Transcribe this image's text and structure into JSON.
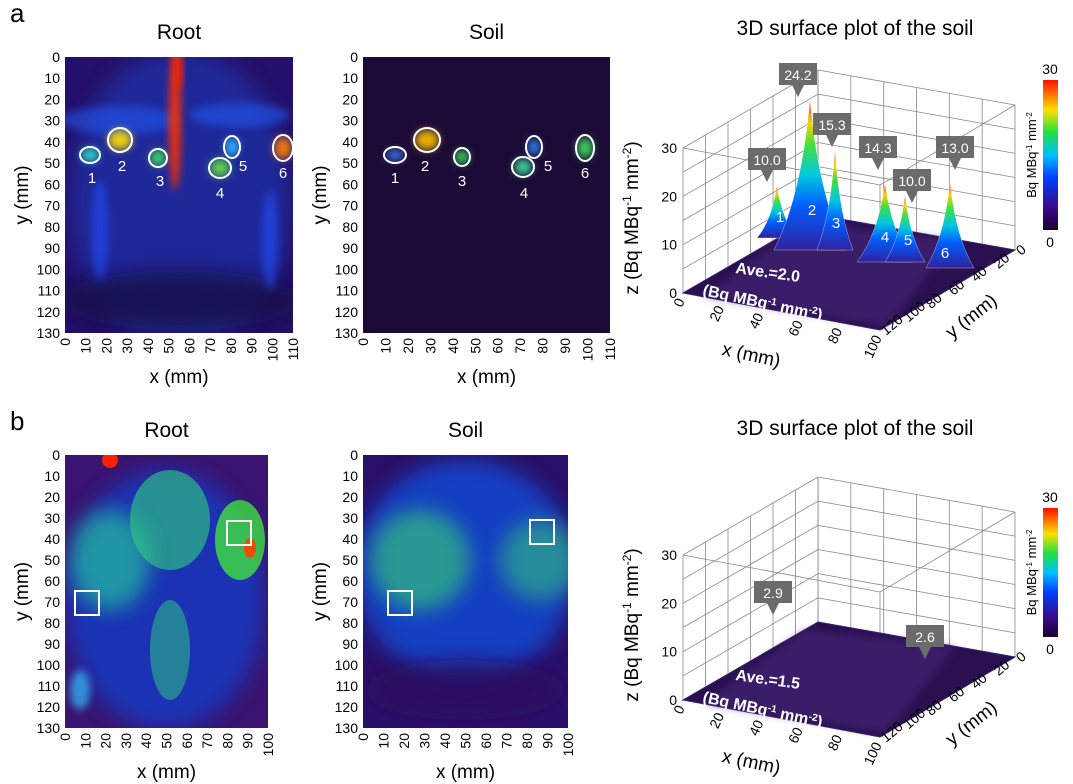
{
  "panels": [
    {
      "label": "a",
      "root": {
        "title": "Root",
        "x_label": "x (mm)",
        "y_label": "y (mm)",
        "x_ticks": [
          0,
          10,
          20,
          30,
          40,
          50,
          60,
          70,
          80,
          90,
          100,
          110
        ],
        "y_ticks": [
          0,
          10,
          20,
          30,
          40,
          50,
          60,
          70,
          80,
          90,
          100,
          110,
          120,
          130
        ],
        "markers": [
          "1",
          "2",
          "3",
          "4",
          "5",
          "6"
        ]
      },
      "soil": {
        "title": "Soil",
        "x_label": "x (mm)",
        "y_label": "y (mm)",
        "x_ticks": [
          0,
          10,
          20,
          30,
          40,
          50,
          60,
          70,
          80,
          90,
          100,
          110
        ],
        "y_ticks": [
          0,
          10,
          20,
          30,
          40,
          50,
          60,
          70,
          80,
          90,
          100,
          110,
          120,
          130
        ],
        "markers": [
          "1",
          "2",
          "3",
          "4",
          "5",
          "6"
        ]
      },
      "surface": {
        "title": "3D surface plot of the soil",
        "z_label": [
          "z (Bq MBq",
          "-1",
          " mm",
          "-2",
          ")"
        ],
        "z_ticks": [
          0,
          10,
          20,
          30
        ],
        "x_label": "x (mm)",
        "x_ticks": [
          0,
          20,
          40,
          60,
          80,
          100
        ],
        "y_label": "y (mm)",
        "y_ticks": [
          0,
          20,
          40,
          60,
          80,
          100,
          120
        ],
        "peaks": [
          "10.0",
          "24.2",
          "15.3",
          "14.3",
          "10.0",
          "13.0"
        ],
        "peak_numbers": [
          "1",
          "2",
          "3",
          "4",
          "5",
          "6"
        ],
        "average": "Ave.=2.0",
        "average_unit": [
          "(Bq MBq",
          "-1",
          " mm",
          "-2",
          ")"
        ],
        "colorbar": {
          "label": [
            "Bq MBq",
            "-1",
            " mm",
            "-2"
          ],
          "max": 30,
          "min": 0
        }
      }
    },
    {
      "label": "b",
      "root": {
        "title": "Root",
        "x_label": "x (mm)",
        "y_label": "y (mm)",
        "x_ticks": [
          0,
          10,
          20,
          30,
          40,
          50,
          60,
          70,
          80,
          90,
          100
        ],
        "y_ticks": [
          0,
          10,
          20,
          30,
          40,
          50,
          60,
          70,
          80,
          90,
          100,
          110,
          120,
          130
        ]
      },
      "soil": {
        "title": "Soil",
        "x_label": "x (mm)",
        "y_label": "y (mm)",
        "x_ticks": [
          0,
          10,
          20,
          30,
          40,
          50,
          60,
          70,
          80,
          90,
          100
        ],
        "y_ticks": [
          0,
          10,
          20,
          30,
          40,
          50,
          60,
          70,
          80,
          90,
          100,
          110,
          120,
          130
        ]
      },
      "surface": {
        "title": "3D surface plot of the soil",
        "z_label": [
          "z (Bq MBq",
          "-1",
          " mm",
          "-2",
          ")"
        ],
        "z_ticks": [
          0,
          10,
          20,
          30
        ],
        "x_label": "x (mm)",
        "x_ticks": [
          0,
          20,
          40,
          60,
          80,
          100
        ],
        "y_label": "y (mm)",
        "y_ticks": [
          0,
          20,
          40,
          60,
          80,
          100,
          120
        ],
        "peaks": [
          "2.9",
          "2.6"
        ],
        "average": "Ave.=1.5",
        "average_unit": [
          "(Bq MBq",
          "-1",
          " mm",
          "-2",
          ")"
        ],
        "colorbar": {
          "label": [
            "Bq MBq",
            "-1",
            " mm",
            "-2"
          ],
          "max": 30,
          "min": 0
        }
      }
    }
  ]
}
